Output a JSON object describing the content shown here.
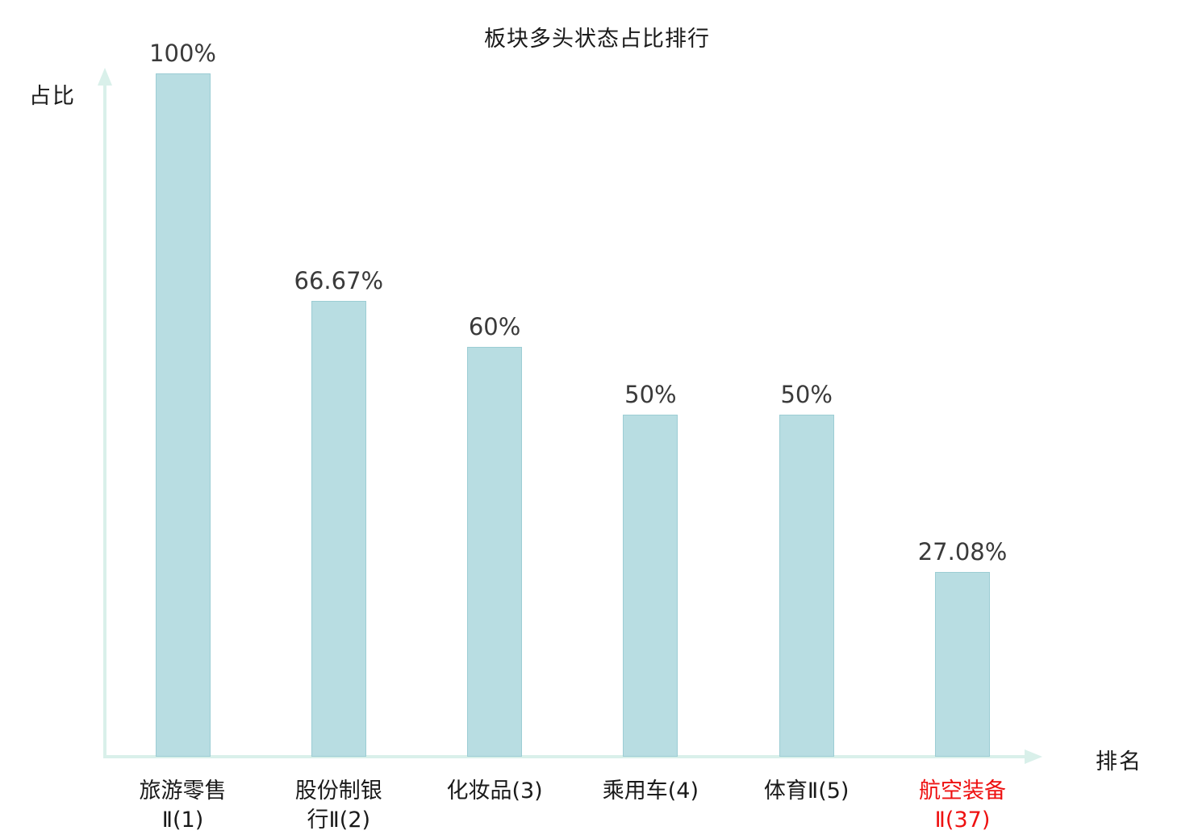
{
  "chart_data": {
    "type": "bar",
    "title": "板块多头状态占比排行",
    "ylabel": "占比",
    "xlabel": "排名",
    "categories": [
      "旅游零售Ⅱ(1)",
      "股份制银行Ⅱ(2)",
      "化妆品(3)",
      "乘用车(4)",
      "体育Ⅱ(5)",
      "航空装备Ⅱ(37)"
    ],
    "values": [
      100,
      66.67,
      60,
      50,
      50,
      27.08
    ],
    "value_labels": [
      "100%",
      "66.67%",
      "60%",
      "50%",
      "50%",
      "27.08%"
    ],
    "ylim": [
      0,
      100
    ],
    "grid": false,
    "legend": "none",
    "highlight_index": 5,
    "highlight_color": "#ee1111",
    "bar_color": "#b8dde2",
    "bar_border_color": "#9ccdd4",
    "axis_color": "#d9f0ea",
    "value_label_color": "#3a3a3a",
    "text_color": "#1a1a1a"
  }
}
